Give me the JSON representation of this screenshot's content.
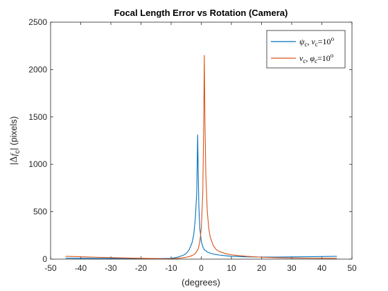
{
  "chart_data": {
    "type": "line",
    "title": "Focal Length Error vs Rotation (Camera)",
    "xlabel": "(degrees)",
    "ylabel": "|Δf_c| (pixels)",
    "xlim": [
      -50,
      50
    ],
    "ylim": [
      0,
      2500
    ],
    "xticks": [
      -50,
      -40,
      -30,
      -20,
      -10,
      0,
      10,
      20,
      30,
      40,
      50
    ],
    "yticks": [
      0,
      500,
      1000,
      1500,
      2000,
      2500
    ],
    "grid": false,
    "legend_position": "top-right",
    "series": [
      {
        "name": "ψc, νc=10°",
        "color": "#0072BD",
        "x": [
          -45,
          -40,
          -35,
          -30,
          -25,
          -20,
          -15,
          -10,
          -8,
          -6,
          -5,
          -4,
          -3,
          -2.5,
          -2,
          -1.5,
          -1.2,
          -1,
          -0.8,
          -0.5,
          0,
          0.5,
          1,
          2,
          3,
          4,
          5,
          6,
          8,
          10,
          15,
          20,
          25,
          30,
          35,
          40,
          45
        ],
        "y": [
          10,
          9,
          8,
          7,
          6,
          5,
          4,
          8,
          20,
          40,
          60,
          100,
          180,
          260,
          420,
          700,
          1310,
          900,
          560,
          330,
          190,
          130,
          100,
          75,
          62,
          54,
          48,
          43,
          36,
          30,
          24,
          22,
          22,
          23,
          25,
          27,
          30
        ]
      },
      {
        "name": "νc, φc=10°",
        "color": "#D95319",
        "x": [
          -45,
          -40,
          -35,
          -30,
          -25,
          -20,
          -15,
          -10,
          -8,
          -6,
          -5,
          -4,
          -3,
          -2,
          -1,
          -0.5,
          0,
          0.5,
          0.8,
          1,
          1.2,
          1.5,
          2,
          2.5,
          3,
          4,
          5,
          6,
          8,
          10,
          15,
          20,
          25,
          30,
          35,
          40,
          45
        ],
        "y": [
          30,
          25,
          20,
          16,
          12,
          9,
          6,
          2,
          8,
          15,
          20,
          27,
          38,
          58,
          110,
          180,
          320,
          700,
          1400,
          2150,
          1500,
          900,
          500,
          320,
          230,
          140,
          100,
          80,
          58,
          45,
          30,
          20,
          15,
          12,
          10,
          9,
          8
        ]
      }
    ]
  }
}
